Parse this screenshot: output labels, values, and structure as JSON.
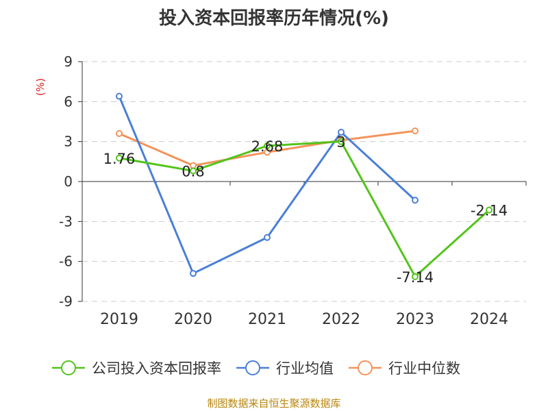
{
  "chart_data": {
    "type": "line",
    "title": "投入资本回报率历年情况(%)",
    "ylabel": "(%)",
    "categories": [
      "2019",
      "2020",
      "2021",
      "2022",
      "2023",
      "2024"
    ],
    "ylim": [
      -9,
      9
    ],
    "yticks": [
      9,
      6,
      3,
      0,
      -3,
      -6,
      -9
    ],
    "grid": true,
    "legend_position": "bottom",
    "series": [
      {
        "name": "公司投入资本回报率",
        "color": "#52c41a",
        "values": [
          1.76,
          0.8,
          2.68,
          3,
          -7.14,
          -2.14
        ],
        "labels": [
          "1.76",
          "0.8",
          "2.68",
          "3",
          "-7.14",
          "-2.14"
        ]
      },
      {
        "name": "行业均值",
        "color": "#4a7fd6",
        "values": [
          6.4,
          -6.9,
          -4.2,
          3.7,
          -1.4,
          null
        ]
      },
      {
        "name": "行业中位数",
        "color": "#f4935a",
        "values": [
          3.6,
          1.2,
          2.2,
          3.1,
          3.8,
          null
        ]
      }
    ]
  },
  "footer": "制图数据来自恒生聚源数据库"
}
